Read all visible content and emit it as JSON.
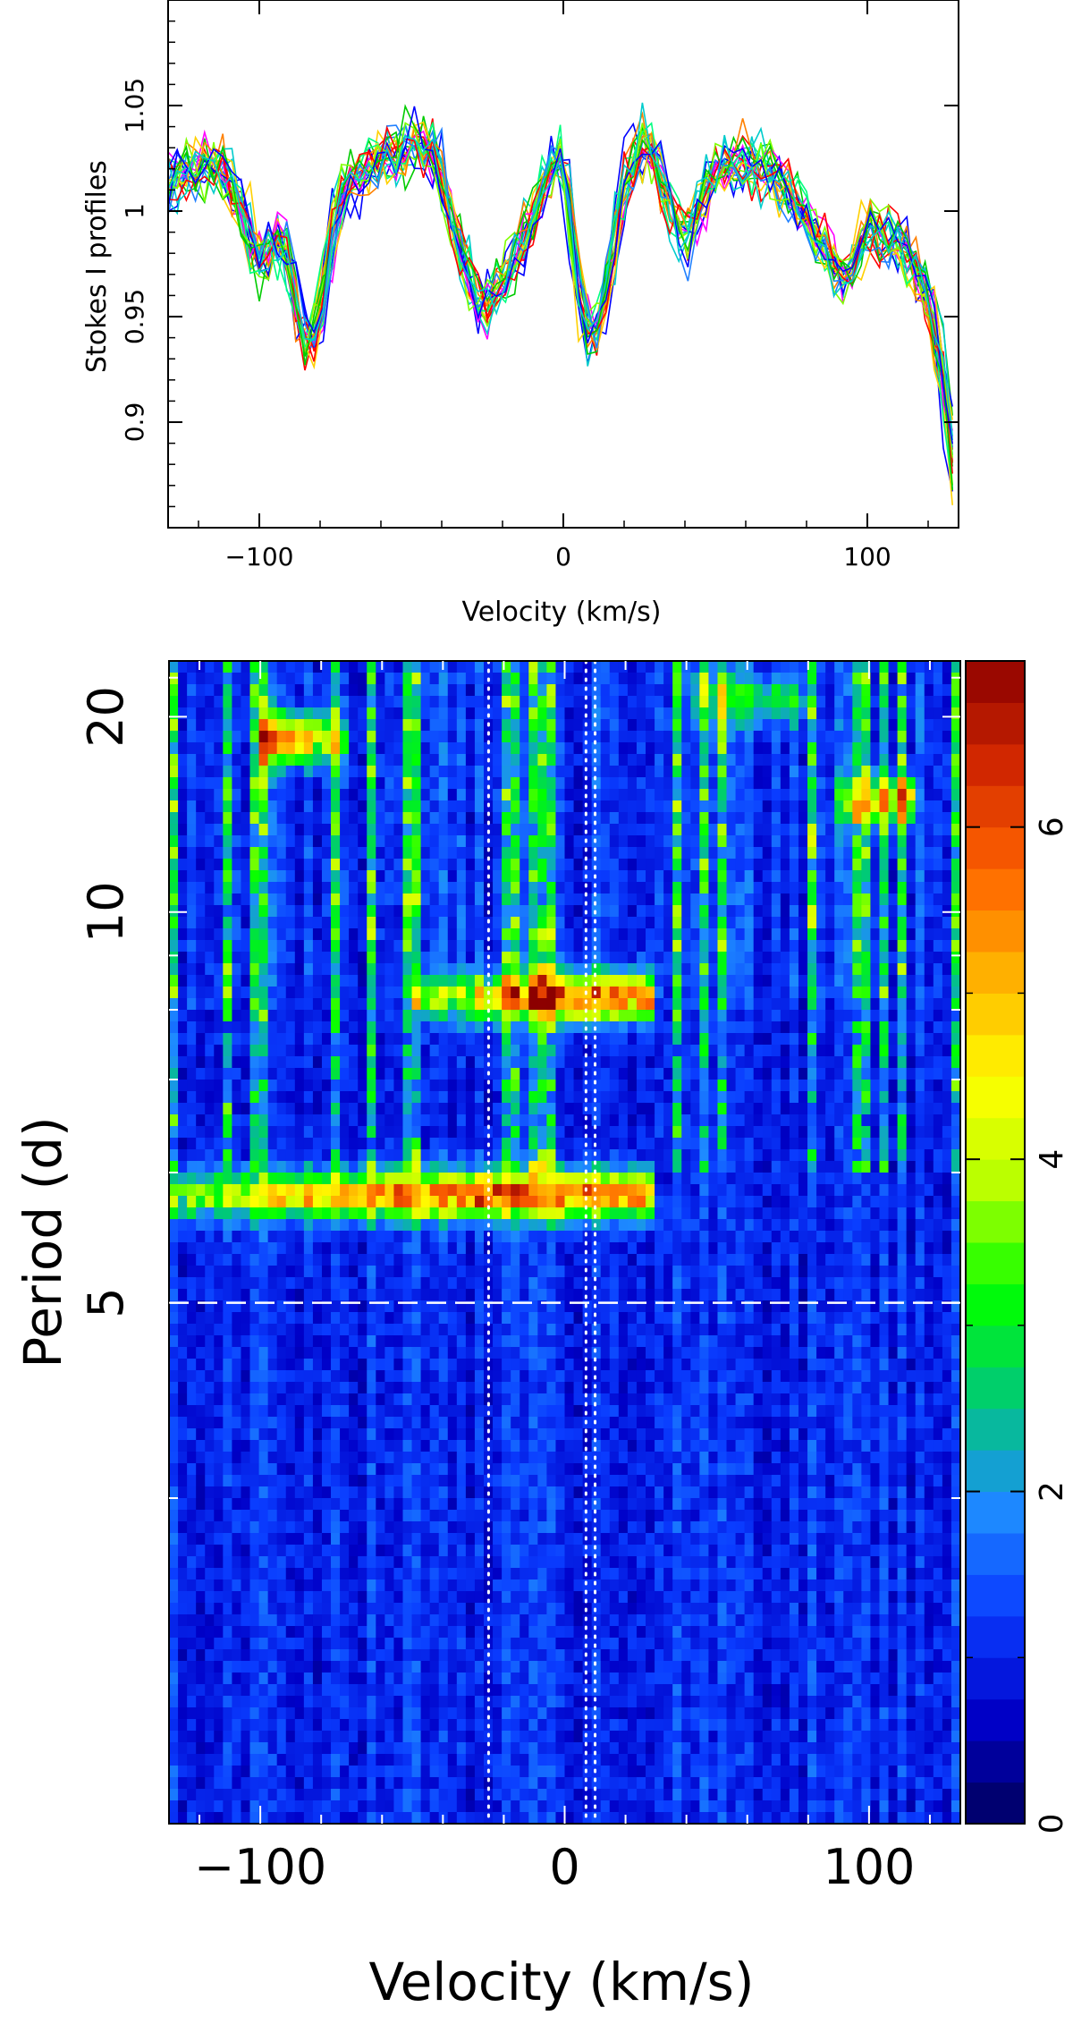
{
  "colors": {
    "axis": "#000000",
    "overlay_lines": "#ffffff",
    "series_palette": [
      "#ff0000",
      "#00cc00",
      "#0000ff",
      "#00cccc",
      "#ff00ff",
      "#ffd000",
      "#ff8000",
      "#00ff80",
      "#2080ff",
      "#80ff00"
    ],
    "colormap": [
      "#00005a",
      "#0000c8",
      "#0a3cff",
      "#1e8cff",
      "#00c87a",
      "#00ff00",
      "#b4ff00",
      "#ffff00",
      "#ffb400",
      "#ff6400",
      "#d22800",
      "#8c0000"
    ]
  },
  "chart_data": [
    {
      "type": "line",
      "xlabel": "Velocity (km/s)",
      "ylabel": "Stokes I profiles",
      "xlim": [
        -130,
        130
      ],
      "ylim": [
        0.85,
        1.1
      ],
      "xticks": [
        -100,
        0,
        100
      ],
      "yticks": [
        0.9,
        0.95,
        1,
        1.05
      ],
      "ytick_labels": [
        "0.9",
        "0.95",
        "1",
        "1.05"
      ],
      "mean_profile": {
        "x": [
          -130,
          -120,
          -110,
          -100,
          -92,
          -85,
          -80,
          -75,
          -68,
          -60,
          -50,
          -42,
          -35,
          -28,
          -20,
          -12,
          -5,
          0,
          5,
          10,
          15,
          20,
          28,
          35,
          40,
          48,
          55,
          65,
          75,
          85,
          92,
          100,
          108,
          115,
          120,
          125,
          130
        ],
        "y": [
          1.012,
          1.022,
          1.018,
          0.975,
          0.99,
          0.935,
          0.95,
          1.0,
          1.018,
          1.025,
          1.03,
          1.028,
          0.985,
          0.955,
          0.965,
          0.99,
          1.018,
          1.03,
          0.96,
          0.935,
          0.97,
          1.015,
          1.035,
          1.0,
          0.985,
          1.015,
          1.022,
          1.022,
          1.01,
          0.985,
          0.965,
          0.99,
          0.985,
          0.975,
          0.96,
          0.92,
          0.855
        ]
      },
      "series_count": 24,
      "series_note": "24 overplotted individual Stokes I profiles of similar shape"
    },
    {
      "type": "heatmap",
      "xlabel": "Velocity (km/s)",
      "ylabel": "Period (d)",
      "xlim": [
        -130,
        130
      ],
      "ylim": [
        3,
        28
      ],
      "y_scale": "reciprocal",
      "xticks": [
        -100,
        0,
        100
      ],
      "yticks": [
        5,
        10,
        20
      ],
      "colorbar": {
        "range": [
          0,
          7
        ],
        "ticks": [
          0,
          2,
          4,
          6
        ]
      },
      "features": [
        {
          "period": 5.8,
          "v_from": -130,
          "v_to": 30,
          "v_peak": -20,
          "strength": 6.8
        },
        {
          "period": 8.2,
          "v_from": -50,
          "v_to": 30,
          "v_peak": 10,
          "strength": 6.5
        },
        {
          "period": 18,
          "v_from": -100,
          "v_to": -70,
          "v_peak": -95,
          "strength": 6.5
        },
        {
          "period": 22,
          "v_from": 40,
          "v_to": 80,
          "v_peak": 60,
          "strength": 3.5
        },
        {
          "period": 14,
          "v_from": 90,
          "v_to": 115,
          "v_peak": 108,
          "strength": 5.5
        }
      ],
      "reference_lines": {
        "horizontal_dashed_period": 5,
        "vertical_dotted_velocities": [
          -25,
          7,
          10
        ]
      }
    }
  ]
}
